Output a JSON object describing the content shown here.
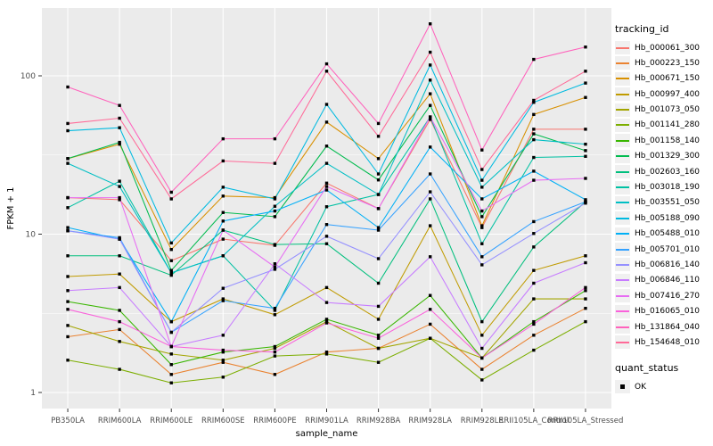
{
  "figure": {
    "ylabel": "FPKM + 1",
    "xlabel": "sample_name",
    "panel_bg": "#EBEBEB",
    "grid_color": "#FFFFFF",
    "tick_label_color": "#4D4D4D",
    "point_color": "#000000"
  },
  "legends": {
    "tracking_id": {
      "title": "tracking_id"
    },
    "quant_status": {
      "title": "quant_status",
      "items": [
        {
          "label": "OK",
          "marker": "black-square"
        }
      ]
    }
  },
  "chart_data": {
    "type": "line",
    "log_y": true,
    "title": "",
    "xlabel": "sample_name",
    "ylabel": "FPKM + 1",
    "y_ticks": [
      1,
      10,
      100
    ],
    "ylim": [
      1,
      250
    ],
    "grid": true,
    "legend_position": "right",
    "categories": [
      "PB350LA",
      "RRIM600LA",
      "RRIM600LE",
      "RRIM600SE",
      "RRIM600PE",
      "RRIM901LA",
      "RRIM928BA",
      "RRIM928LA",
      "RRIM928LE",
      "RRII105LA_Control",
      "RRII105LA_Stressed"
    ],
    "series": [
      {
        "name": "Hb_000061_300",
        "color": "#F8766D",
        "values": [
          17,
          16.5,
          6.8,
          9.3,
          8.5,
          21,
          14.5,
          53,
          11,
          46,
          46
        ]
      },
      {
        "name": "Hb_000223_150",
        "color": "#EA8331",
        "values": [
          2.25,
          2.5,
          1.3,
          1.55,
          1.3,
          1.8,
          1.9,
          2.7,
          1.4,
          2.3,
          3.4
        ]
      },
      {
        "name": "Hb_000671_150",
        "color": "#D89000",
        "values": [
          30,
          37,
          8.0,
          17.4,
          17,
          51,
          30,
          77,
          11.3,
          57,
          73
        ]
      },
      {
        "name": "Hb_000997_400",
        "color": "#C09B00",
        "values": [
          5.4,
          5.6,
          2.8,
          3.9,
          3.1,
          4.6,
          2.9,
          11.3,
          2.3,
          5.9,
          7.3
        ]
      },
      {
        "name": "Hb_001073_050",
        "color": "#A3A500",
        "values": [
          2.65,
          2.1,
          1.75,
          1.6,
          1.9,
          2.8,
          1.9,
          2.2,
          1.65,
          3.9,
          3.9
        ]
      },
      {
        "name": "Hb_001141_280",
        "color": "#7CAE00",
        "values": [
          1.6,
          1.4,
          1.15,
          1.25,
          1.7,
          1.75,
          1.55,
          2.2,
          1.2,
          1.85,
          2.8
        ]
      },
      {
        "name": "Hb_001158_140",
        "color": "#39B600",
        "values": [
          3.75,
          3.3,
          1.5,
          1.8,
          1.95,
          2.9,
          2.3,
          4.1,
          1.65,
          2.8,
          4.4
        ]
      },
      {
        "name": "Hb_001329_300",
        "color": "#00BB4E",
        "values": [
          30,
          38,
          5.9,
          13.7,
          12.9,
          36,
          22,
          65,
          12.9,
          43,
          33.7
        ]
      },
      {
        "name": "Hb_002603_160",
        "color": "#00BF7D",
        "values": [
          7.3,
          7.3,
          5.5,
          10.6,
          8.6,
          8.7,
          4.9,
          16.7,
          2.8,
          8.3,
          16
        ]
      },
      {
        "name": "Hb_003018_190",
        "color": "#00C1A3",
        "values": [
          14.7,
          21.6,
          5.7,
          7.3,
          3.3,
          14.9,
          17.8,
          55,
          8.7,
          30.5,
          31
        ]
      },
      {
        "name": "Hb_003551_050",
        "color": "#00BFC4",
        "values": [
          28,
          20,
          5.7,
          7.3,
          15,
          28,
          17.8,
          94,
          19.8,
          39.5,
          37
        ]
      },
      {
        "name": "Hb_005188_090",
        "color": "#00BAE0",
        "values": [
          45,
          47,
          8.8,
          19.8,
          16.7,
          66,
          24,
          117,
          21.9,
          68,
          90
        ]
      },
      {
        "name": "Hb_005488_010",
        "color": "#00B0F6",
        "values": [
          11,
          9.3,
          2.8,
          12.1,
          14,
          19,
          11,
          35.5,
          16.7,
          25,
          16.5
        ]
      },
      {
        "name": "Hb_005701_010",
        "color": "#35A2FF",
        "values": [
          10.5,
          9.5,
          2.4,
          3.8,
          3.4,
          11.5,
          10.6,
          24,
          7.2,
          12,
          16
        ]
      },
      {
        "name": "Hb_006816_140",
        "color": "#9590FF",
        "values": [
          10.5,
          9.3,
          2.4,
          4.55,
          6.0,
          9.7,
          7.0,
          18.5,
          6.4,
          10.1,
          15.7
        ]
      },
      {
        "name": "Hb_006846_110",
        "color": "#C77CFF",
        "values": [
          4.4,
          4.6,
          1.95,
          2.3,
          6.5,
          3.7,
          3.5,
          7.2,
          1.9,
          4.9,
          6.6
        ]
      },
      {
        "name": "Hb_007416_270",
        "color": "#E76BF3",
        "values": [
          17,
          17,
          1.95,
          10.6,
          6.2,
          20,
          14.5,
          55,
          14,
          21.9,
          22.5
        ]
      },
      {
        "name": "Hb_016065_010",
        "color": "#FA62DB",
        "values": [
          3.35,
          2.8,
          1.95,
          1.85,
          1.8,
          2.75,
          2.2,
          3.35,
          1.65,
          2.7,
          4.6
        ]
      },
      {
        "name": "Hb_131864_040",
        "color": "#FF62BC",
        "values": [
          85,
          65,
          18.4,
          40,
          40,
          119,
          50,
          213,
          34,
          127,
          152
        ]
      },
      {
        "name": "Hb_154648_010",
        "color": "#FF6A98",
        "values": [
          50,
          54,
          16.7,
          29,
          28,
          107,
          41.5,
          141,
          25.6,
          70,
          107
        ]
      }
    ]
  }
}
